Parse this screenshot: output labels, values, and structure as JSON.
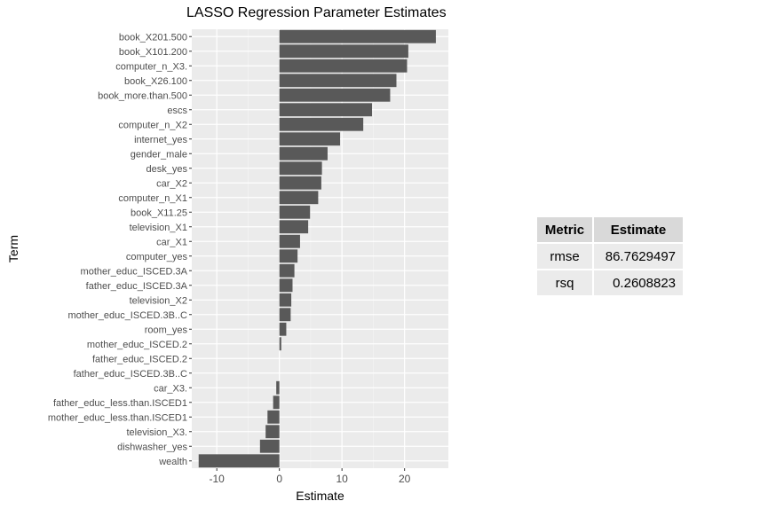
{
  "chart_data": {
    "type": "bar",
    "orientation": "horizontal",
    "title": "LASSO Regression Parameter Estimates",
    "xlabel": "Estimate",
    "ylabel": "Term",
    "xlim": [
      -14,
      27
    ],
    "xticks": [
      -10,
      0,
      10,
      20
    ],
    "grid": true,
    "bar_color": "#595959",
    "panel_color": "#ebebeb",
    "categories": [
      "book_X201.500",
      "book_X101.200",
      "computer_n_X3.",
      "book_X26.100",
      "book_more.than.500",
      "escs",
      "computer_n_X2",
      "internet_yes",
      "gender_male",
      "desk_yes",
      "car_X2",
      "computer_n_X1",
      "book_X11.25",
      "television_X1",
      "car_X1",
      "computer_yes",
      "mother_educ_ISCED.3A",
      "father_educ_ISCED.3A",
      "television_X2",
      "mother_educ_ISCED.3B..C",
      "room_yes",
      "mother_educ_ISCED.2",
      "father_educ_ISCED.2",
      "father_educ_ISCED.3B..C",
      "car_X3.",
      "father_educ_less.than.ISCED1",
      "mother_educ_less.than.ISCED1",
      "television_X3.",
      "dishwasher_yes",
      "wealth"
    ],
    "values": [
      25.0,
      20.6,
      20.4,
      18.7,
      17.7,
      14.8,
      13.4,
      9.7,
      7.7,
      6.8,
      6.7,
      6.2,
      4.9,
      4.6,
      3.3,
      2.9,
      2.4,
      2.1,
      1.9,
      1.8,
      1.1,
      0.3,
      0.0,
      0.0,
      -0.5,
      -1.0,
      -1.9,
      -2.2,
      -3.1,
      -12.9
    ]
  },
  "metrics_table": {
    "headers": [
      "Metric",
      "Estimate"
    ],
    "rows": [
      {
        "metric": "rmse",
        "estimate": "86.7629497"
      },
      {
        "metric": "rsq",
        "estimate": "0.2608823"
      }
    ]
  }
}
